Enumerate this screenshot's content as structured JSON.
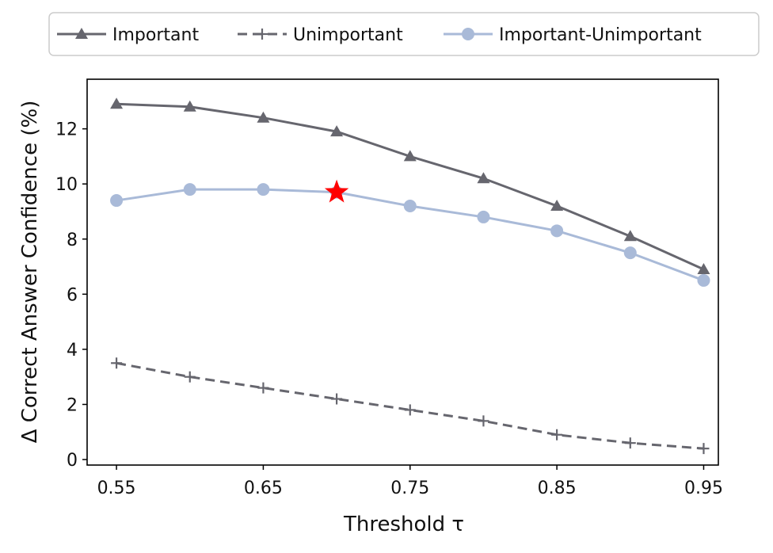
{
  "chart_data": {
    "type": "line",
    "xlabel": "Threshold τ",
    "ylabel": "Δ Correct Answer Confidence (%)",
    "xlim": [
      0.53,
      0.96
    ],
    "ylim": [
      -0.2,
      13.8
    ],
    "x": [
      0.55,
      0.6,
      0.65,
      0.7,
      0.75,
      0.8,
      0.85,
      0.9,
      0.95
    ],
    "x_ticks": [
      "0.55",
      "0.65",
      "0.75",
      "0.85",
      "0.95"
    ],
    "y_ticks": [
      "0",
      "2",
      "4",
      "6",
      "8",
      "10",
      "12"
    ],
    "grid": false,
    "legend_position": "top",
    "series": [
      {
        "name": "Important",
        "values": [
          12.9,
          12.8,
          12.4,
          11.9,
          11.0,
          10.2,
          9.2,
          8.1,
          6.9
        ],
        "color": "#66666e",
        "marker": "triangle",
        "line_style": "solid"
      },
      {
        "name": "Unimportant",
        "values": [
          3.5,
          3.0,
          2.6,
          2.2,
          1.8,
          1.4,
          0.9,
          0.6,
          0.4
        ],
        "color": "#66666e",
        "marker": "plus",
        "line_style": "dashed"
      },
      {
        "name": "Important-Unimportant",
        "values": [
          9.4,
          9.8,
          9.8,
          9.7,
          9.2,
          8.8,
          8.3,
          7.5,
          6.5
        ],
        "color": "#a9bad8",
        "marker": "circle",
        "line_style": "solid"
      }
    ],
    "highlight": {
      "series": "Important-Unimportant",
      "x": 0.7,
      "y": 9.7,
      "marker": "star",
      "color": "#ff0000"
    }
  }
}
